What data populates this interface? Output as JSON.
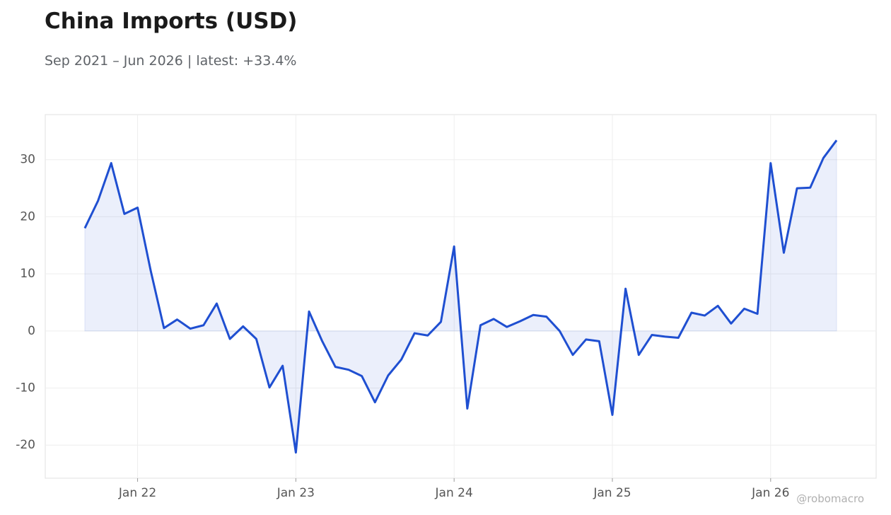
{
  "chart_data": {
    "type": "line",
    "title": "China Imports (USD)",
    "subtitle": "Sep 2021 – Jun 2026 | latest: +33.4%",
    "watermark": "@robomacro",
    "x": [
      "2021-09",
      "2021-10",
      "2021-11",
      "2021-12",
      "2022-01",
      "2022-02",
      "2022-03",
      "2022-04",
      "2022-05",
      "2022-06",
      "2022-07",
      "2022-08",
      "2022-09",
      "2022-10",
      "2022-11",
      "2022-12",
      "2023-01",
      "2023-02",
      "2023-03",
      "2023-04",
      "2023-05",
      "2023-06",
      "2023-07",
      "2023-08",
      "2023-09",
      "2023-10",
      "2023-11",
      "2023-12",
      "2024-01",
      "2024-02",
      "2024-03",
      "2024-04",
      "2024-05",
      "2024-06",
      "2024-07",
      "2024-08",
      "2024-09",
      "2024-10",
      "2024-11",
      "2024-12",
      "2025-01",
      "2025-02",
      "2025-03",
      "2025-04",
      "2025-05",
      "2025-06",
      "2025-07",
      "2025-08",
      "2025-09",
      "2025-10",
      "2025-11",
      "2025-12",
      "2026-01",
      "2026-02",
      "2026-03",
      "2026-04",
      "2026-05",
      "2026-06"
    ],
    "series": [
      {
        "color": "#1f4fd1",
        "values": [
          18.0,
          22.8,
          29.4,
          20.5,
          21.6,
          10.5,
          0.5,
          2.0,
          0.4,
          1.0,
          4.8,
          -1.4,
          0.8,
          -1.4,
          -9.9,
          -6.1,
          -21.3,
          3.4,
          -1.8,
          -6.3,
          -6.8,
          -7.9,
          -12.5,
          -7.8,
          -5.0,
          -0.4,
          -0.8,
          1.6,
          14.8,
          -13.6,
          1.0,
          2.1,
          0.7,
          1.7,
          2.8,
          2.5,
          0.0,
          -4.2,
          -1.5,
          -1.8,
          -14.7,
          7.4,
          -4.2,
          -0.7,
          -1.0,
          -1.2,
          3.2,
          2.7,
          4.4,
          1.3,
          3.9,
          3.0,
          29.4,
          13.7,
          25.0,
          25.1,
          30.3,
          33.4
        ]
      }
    ],
    "xlim": [
      "2021-06",
      "2026-09"
    ],
    "xticks": [
      {
        "value": "2022-01",
        "label": "Jan 22"
      },
      {
        "value": "2023-01",
        "label": "Jan 23"
      },
      {
        "value": "2024-01",
        "label": "Jan 24"
      },
      {
        "value": "2025-01",
        "label": "Jan 25"
      },
      {
        "value": "2026-01",
        "label": "Jan 26"
      }
    ],
    "ylim": [
      -25.8,
      37.9
    ],
    "yticks": [
      -20,
      -10,
      0,
      10,
      20,
      30
    ],
    "grid": true,
    "fill_to_zero": true
  }
}
